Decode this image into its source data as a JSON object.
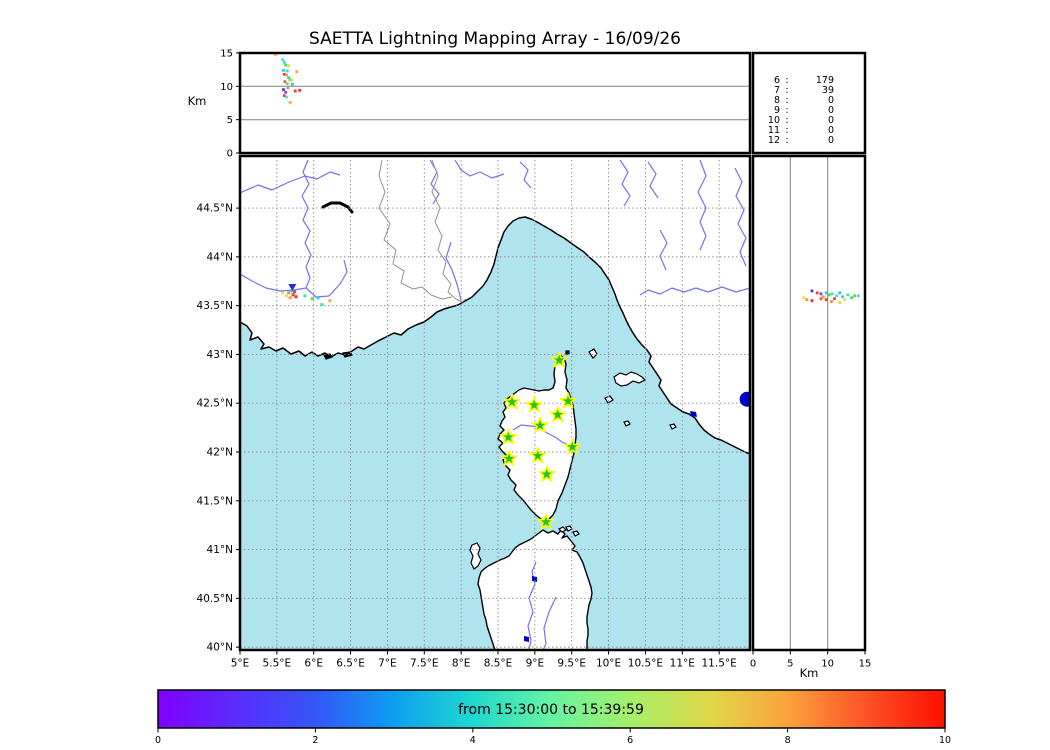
{
  "title": "SAETTA Lightning Mapping Array - 16/09/26",
  "colors": {
    "sea": "#afe3ee",
    "land": "#ffffff",
    "river": "#7272ee",
    "country_border": "#909090",
    "grid": "#8a8a8a",
    "coast": "#000000",
    "station_fill": "#22c322",
    "station_edge": "#ffff00",
    "balloon": "#0000cc",
    "counts_highlight": "#e02020",
    "text": "#000000"
  },
  "chart_data": {
    "type": "scatter",
    "title": "SAETTA Lightning Mapping Array - 16/09/26",
    "panels": {
      "alt_lon": {
        "ylabel": "Km",
        "ylim": [
          0,
          15
        ],
        "yticks": [
          "15",
          "10",
          "5",
          "0"
        ],
        "points": [
          [
            5.48,
            14.8,
            "#ff9d3c"
          ],
          [
            5.58,
            14.0,
            "#35e5c8"
          ],
          [
            5.6,
            13.6,
            "#35e5c8"
          ],
          [
            5.62,
            13.2,
            "#4ade4a"
          ],
          [
            5.66,
            13.1,
            "#e0dd45"
          ],
          [
            5.59,
            12.4,
            "#35c8e5"
          ],
          [
            5.64,
            12.3,
            "#35e5c8"
          ],
          [
            5.77,
            12.2,
            "#fba23c"
          ],
          [
            5.6,
            11.8,
            "#f04432"
          ],
          [
            5.63,
            11.7,
            "#fb8a3c"
          ],
          [
            5.66,
            11.3,
            "#35c8e5"
          ],
          [
            5.68,
            11.0,
            "#4ade4a"
          ],
          [
            5.61,
            10.7,
            "#fd5226"
          ],
          [
            5.64,
            10.4,
            "#35e5c8"
          ],
          [
            5.71,
            10.3,
            "#35c8e5"
          ],
          [
            5.81,
            9.4,
            "#f03226"
          ],
          [
            5.75,
            9.3,
            "#e83a3a"
          ],
          [
            5.59,
            9.5,
            "#3c3cf0"
          ],
          [
            5.62,
            9.1,
            "#8a3cf0"
          ],
          [
            5.6,
            8.6,
            "#f04432"
          ],
          [
            5.63,
            8.4,
            "#35e5c8"
          ],
          [
            5.68,
            7.6,
            "#fba23c"
          ],
          [
            5.7,
            10.9,
            "#ffd23c"
          ],
          [
            5.65,
            9.8,
            "#fb8a3c"
          ]
        ]
      },
      "station_counts": {
        "rows": [
          {
            "station": "6",
            "sep": ":",
            "value": "179",
            "color": "#000000"
          },
          {
            "station": "7",
            "sep": ":",
            "value": "39",
            "color": "#e02020"
          },
          {
            "station": "8",
            "sep": ":",
            "value": "0",
            "color": "#000000"
          },
          {
            "station": "9",
            "sep": ":",
            "value": "0",
            "color": "#000000"
          },
          {
            "station": "10",
            "sep": ":",
            "value": "0",
            "color": "#000000"
          },
          {
            "station": "11",
            "sep": ":",
            "value": "0",
            "color": "#000000"
          },
          {
            "station": "12",
            "sep": ":",
            "value": "0",
            "color": "#000000"
          }
        ]
      },
      "map": {
        "lon_ticks": [
          "5°E",
          "5.5°E",
          "6°E",
          "6.5°E",
          "7°E",
          "7.5°E",
          "8°E",
          "8.5°E",
          "9°E",
          "9.5°E",
          "10°E",
          "10.5°E",
          "11°E",
          "11.5°E"
        ],
        "lat_ticks": [
          "44.5°N",
          "44°N",
          "43.5°N",
          "43°N",
          "42.5°N",
          "42°N",
          "41.5°N",
          "41°N",
          "40.5°N",
          "40°N"
        ],
        "lon_range": [
          5,
          11.92
        ],
        "lat_range": [
          39.95,
          45.03
        ],
        "stations_lonlat": [
          [
            9.33,
            42.94
          ],
          [
            8.69,
            42.51
          ],
          [
            8.99,
            42.48
          ],
          [
            9.45,
            42.52
          ],
          [
            9.31,
            42.38
          ],
          [
            9.07,
            42.27
          ],
          [
            8.64,
            42.15
          ],
          [
            9.51,
            42.05
          ],
          [
            9.04,
            41.96
          ],
          [
            8.65,
            41.93
          ],
          [
            9.16,
            41.77
          ],
          [
            9.15,
            41.28
          ]
        ],
        "points": [
          [
            5.66,
            43.63,
            "#fb8a3c"
          ],
          [
            5.72,
            43.61,
            "#f04432"
          ],
          [
            5.76,
            43.59,
            "#e83a2a"
          ],
          [
            5.68,
            43.58,
            "#ff9d3c"
          ],
          [
            5.63,
            43.6,
            "#ffd23c"
          ],
          [
            5.58,
            43.63,
            "#e0dd45"
          ],
          [
            5.7,
            43.65,
            "#35c8e5"
          ],
          [
            5.88,
            43.6,
            "#35e5c8"
          ],
          [
            5.98,
            43.57,
            "#4ade4a"
          ],
          [
            6.06,
            43.58,
            "#35c8e5"
          ],
          [
            6.22,
            43.55,
            "#fba23c"
          ],
          [
            6.11,
            43.51,
            "#35e5c8"
          ],
          [
            5.74,
            43.64,
            "#f04432"
          ]
        ],
        "triangle_marker": [
          5.71,
          43.69,
          "#2828dd"
        ],
        "balloon_marker": {
          "lon": 11.88,
          "lat": 42.54,
          "radius_px": 7.5,
          "color": "#0000cc"
        }
      },
      "alt_lat": {
        "xlabel": "Km",
        "xlim": [
          0,
          15
        ],
        "xticks": [
          "0",
          "5",
          "10",
          "15"
        ],
        "points": [
          [
            7.9,
            43.65,
            "#3c3cf0"
          ],
          [
            8.6,
            43.63,
            "#f04432"
          ],
          [
            9.1,
            43.62,
            "#8a3cf0"
          ],
          [
            9.8,
            43.63,
            "#35c8e5"
          ],
          [
            10.2,
            43.61,
            "#4ade4a"
          ],
          [
            10.6,
            43.62,
            "#35e5c8"
          ],
          [
            11.2,
            43.6,
            "#35e5c8"
          ],
          [
            11.6,
            43.63,
            "#35c8e5"
          ],
          [
            12.0,
            43.59,
            "#35c8e5"
          ],
          [
            12.7,
            43.61,
            "#35e5c8"
          ],
          [
            13.2,
            43.58,
            "#4ade4a"
          ],
          [
            13.6,
            43.6,
            "#4ade4a"
          ],
          [
            14.1,
            43.6,
            "#35e5c8"
          ],
          [
            6.8,
            43.58,
            "#ffd23c"
          ],
          [
            7.2,
            43.56,
            "#fb8a3c"
          ],
          [
            7.9,
            43.55,
            "#f03226"
          ],
          [
            9.1,
            43.57,
            "#fd5226"
          ],
          [
            9.8,
            43.56,
            "#e83a3a"
          ],
          [
            10.5,
            43.54,
            "#fb8a3c"
          ],
          [
            11.6,
            43.53,
            "#ffd23c"
          ],
          [
            9.4,
            43.59,
            "#fb8a3c"
          ],
          [
            10.9,
            43.57,
            "#f04432"
          ],
          [
            12.3,
            43.56,
            "#e0dd45"
          ]
        ]
      },
      "colorbar": {
        "label": "from 15:30:00 to 15:39:59",
        "ticks": [
          "0",
          "2",
          "4",
          "6",
          "8",
          "10"
        ],
        "range": [
          0,
          10
        ],
        "gradient_stops": [
          "#8000ff",
          "#5a2dfc",
          "#3356f8",
          "#0d9ff1",
          "#1fd8cf",
          "#66f3a2",
          "#a5ef6a",
          "#dfd948",
          "#fba23c",
          "#fd5226",
          "#ff1000"
        ]
      }
    }
  }
}
